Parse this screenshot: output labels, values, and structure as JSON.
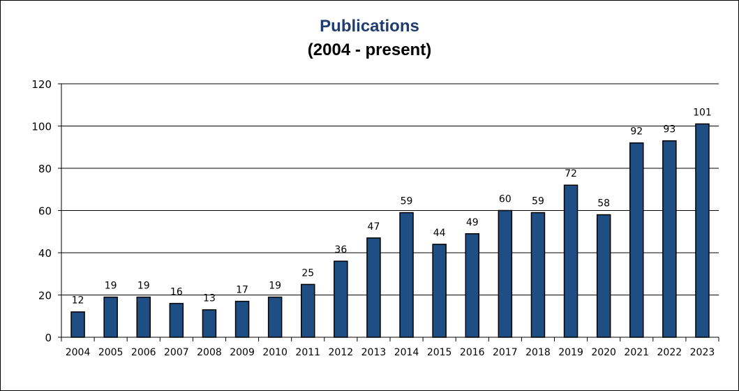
{
  "chart_data": {
    "type": "bar",
    "title": "Publications",
    "subtitle": "(2004 - present)",
    "categories": [
      "2004",
      "2005",
      "2006",
      "2007",
      "2008",
      "2009",
      "2010",
      "2011",
      "2012",
      "2013",
      "2014",
      "2015",
      "2016",
      "2017",
      "2018",
      "2019",
      "2020",
      "2021",
      "2022",
      "2023"
    ],
    "values": [
      12,
      19,
      19,
      16,
      13,
      17,
      19,
      25,
      36,
      47,
      59,
      44,
      49,
      60,
      59,
      72,
      58,
      92,
      93,
      101
    ],
    "ylim": [
      0,
      120
    ],
    "yticks": [
      0,
      20,
      40,
      60,
      80,
      100,
      120
    ],
    "grid": true,
    "legend": "none",
    "colors": {
      "bar": "#1f4e84",
      "bar_border": "#000000",
      "title": "#1f3d6e"
    }
  }
}
